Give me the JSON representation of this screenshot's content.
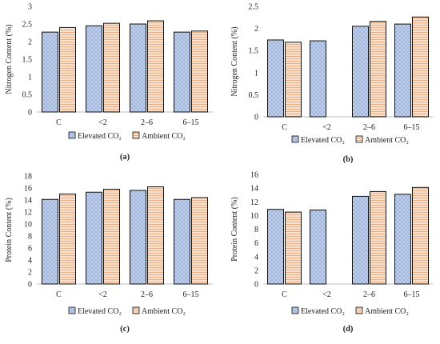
{
  "legend": {
    "elevated": "Elevated CO₂",
    "ambient": "Ambient CO₂"
  },
  "colors": {
    "elevated_fill": "#c5d3ec",
    "elevated_hatch": "#8ea5d4",
    "ambient_fill": "#fbe0cc",
    "ambient_hatch": "#e3a073",
    "axis": "#bdbdbd",
    "bar_stroke": "#111111"
  },
  "chart_data": [
    {
      "type": "bar",
      "panel_label": "(a)",
      "ylabel": "Nitrogen Content (%)",
      "ylim": [
        0,
        3
      ],
      "yticks": [
        "0",
        "0.5",
        "1",
        "1.5",
        "2",
        "2.5",
        "3"
      ],
      "categories": [
        "C",
        "<2",
        "2–6",
        "6–15"
      ],
      "series": [
        {
          "name": "Elevated CO₂",
          "values": [
            2.27,
            2.45,
            2.5,
            2.27
          ]
        },
        {
          "name": "Ambient CO₂",
          "values": [
            2.4,
            2.52,
            2.59,
            2.3
          ]
        }
      ],
      "legend_position": "bottom"
    },
    {
      "type": "bar",
      "panel_label": "(b)",
      "ylabel": "Nitrogen Content (%)",
      "ylim": [
        0,
        2.5
      ],
      "yticks": [
        "0",
        "0.5",
        "1",
        "1.5",
        "2",
        "2.5"
      ],
      "categories": [
        "C",
        "<2",
        "2–6",
        "6–15"
      ],
      "series": [
        {
          "name": "Elevated CO₂",
          "values": [
            1.74,
            1.72,
            2.05,
            2.1
          ]
        },
        {
          "name": "Ambient CO₂",
          "values": [
            1.69,
            null,
            2.16,
            2.26
          ]
        }
      ],
      "legend_position": "bottom"
    },
    {
      "type": "bar",
      "panel_label": "(c)",
      "ylabel": "Protein Content (%)",
      "ylim": [
        0,
        18
      ],
      "yticks": [
        "0",
        "2",
        "4",
        "6",
        "8",
        "10",
        "12",
        "14",
        "16",
        "18"
      ],
      "categories": [
        "C",
        "<2",
        "2–6",
        "6–15"
      ],
      "series": [
        {
          "name": "Elevated CO₂",
          "values": [
            14.1,
            15.3,
            15.6,
            14.1
          ]
        },
        {
          "name": "Ambient CO₂",
          "values": [
            15.0,
            15.8,
            16.2,
            14.4
          ]
        }
      ],
      "legend_position": "bottom"
    },
    {
      "type": "bar",
      "panel_label": "(d)",
      "ylabel": "Protein Content (%)",
      "ylim": [
        0,
        16
      ],
      "yticks": [
        "0",
        "2",
        "4",
        "6",
        "8",
        "10",
        "12",
        "14",
        "16"
      ],
      "categories": [
        "C",
        "<2",
        "2–6",
        "6–15"
      ],
      "series": [
        {
          "name": "Elevated CO₂",
          "values": [
            10.9,
            10.8,
            12.8,
            13.1
          ]
        },
        {
          "name": "Ambient CO₂",
          "values": [
            10.5,
            null,
            13.5,
            14.1
          ]
        }
      ],
      "legend_position": "bottom"
    }
  ]
}
